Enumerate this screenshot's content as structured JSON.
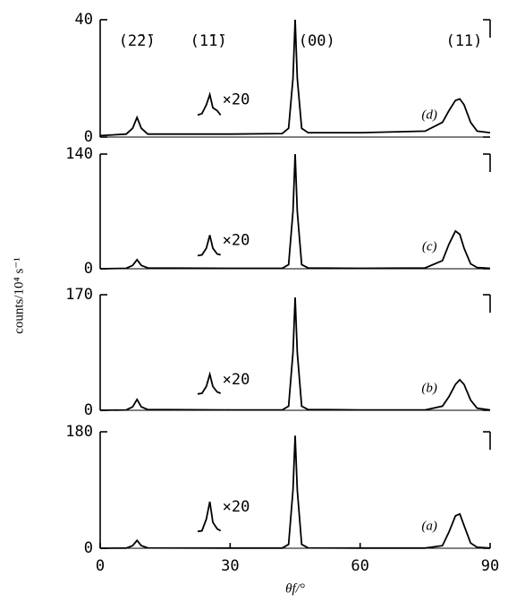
{
  "y_axis_label": "counts/10⁴ s⁻¹",
  "chart_data": [
    {
      "type": "line",
      "panel_label": "(d)",
      "inset_label": "×20",
      "peak_labels": [
        "(2̄2̄)",
        "(1̄1̄)",
        "(00)",
        "(11)"
      ],
      "xlim": [
        0,
        90
      ],
      "ylim": [
        0,
        40
      ],
      "yticks": [
        0,
        40
      ],
      "series": [
        {
          "color": "#000000",
          "x": [
            0,
            6,
            7.5,
            8.5,
            9.5,
            11,
            30,
            42,
            43.5,
            44.5,
            45,
            45.5,
            46.5,
            48,
            60,
            75,
            79,
            80.5,
            82,
            83,
            84,
            85.5,
            87,
            90
          ],
          "values": [
            0.5,
            1,
            3,
            6.7,
            3,
            1,
            1,
            1.2,
            3,
            20,
            40,
            20,
            3,
            1.5,
            1.5,
            2,
            5,
            9,
            12.5,
            13,
            11,
            5,
            2,
            1.5
          ]
        },
        {
          "color": "#000000",
          "x": [
            22.5,
            23.5,
            24.5,
            25.3,
            26,
            27,
            27.8
          ],
          "values": [
            7.5,
            8,
            11,
            14.5,
            10,
            9,
            7.5
          ]
        }
      ]
    },
    {
      "type": "line",
      "panel_label": "(c)",
      "inset_label": "×20",
      "xlim": [
        0,
        90
      ],
      "ylim": [
        0,
        140
      ],
      "yticks": [
        0,
        140
      ],
      "series": [
        {
          "color": "#000000",
          "x": [
            0,
            6,
            7.5,
            8.5,
            9.5,
            11,
            30,
            42,
            43.5,
            44.5,
            45,
            45.5,
            46.5,
            48,
            60,
            75,
            79,
            80.5,
            82,
            83,
            84,
            85.5,
            87,
            90
          ],
          "values": [
            0,
            0.5,
            4,
            11,
            4,
            1,
            0.5,
            0.5,
            5,
            70,
            140,
            70,
            5,
            1,
            0.5,
            1,
            10,
            30,
            46,
            42,
            25,
            6,
            1.5,
            0.5
          ]
        },
        {
          "color": "#000000",
          "x": [
            22.5,
            23.5,
            24.5,
            25.3,
            26,
            27,
            27.8
          ],
          "values": [
            16,
            17,
            25,
            41,
            25,
            18,
            17
          ]
        }
      ]
    },
    {
      "type": "line",
      "panel_label": "(b)",
      "inset_label": "×20",
      "xlim": [
        0,
        90
      ],
      "ylim": [
        0,
        170
      ],
      "yticks": [
        0,
        170
      ],
      "series": [
        {
          "color": "#000000",
          "x": [
            0,
            6,
            7.5,
            8.5,
            9.5,
            11,
            30,
            42,
            43.5,
            44.5,
            45,
            45.5,
            46.5,
            48,
            60,
            75,
            79,
            80.5,
            82,
            83,
            84,
            85.5,
            87,
            90
          ],
          "values": [
            0,
            0.5,
            5,
            16,
            5,
            1,
            0.5,
            0.5,
            6,
            85,
            166,
            85,
            6,
            1,
            0.5,
            0.5,
            6,
            20,
            38,
            45,
            38,
            15,
            3,
            0.5
          ]
        },
        {
          "color": "#000000",
          "x": [
            22.5,
            23.5,
            24.5,
            25.3,
            26,
            27,
            27.8
          ],
          "values": [
            24,
            25,
            35,
            53,
            35,
            27,
            25
          ]
        }
      ]
    },
    {
      "type": "line",
      "panel_label": "(a)",
      "inset_label": "×20",
      "xlim": [
        0,
        90
      ],
      "ylim": [
        0,
        180
      ],
      "yticks": [
        0,
        180
      ],
      "xticks": [
        0,
        30,
        60,
        90
      ],
      "xlabel": "θf/°",
      "series": [
        {
          "color": "#000000",
          "x": [
            0,
            6,
            7.5,
            8.5,
            9.5,
            11,
            30,
            42,
            43.5,
            44.5,
            45,
            45.5,
            46.5,
            48,
            60,
            75,
            79,
            80.5,
            82,
            83,
            84,
            85.5,
            87,
            90
          ],
          "values": [
            0,
            0.3,
            4,
            12,
            4,
            0.5,
            0.3,
            0.3,
            6,
            90,
            174,
            90,
            6,
            0.5,
            0.3,
            0.3,
            4,
            25,
            50,
            53,
            35,
            8,
            1.5,
            0.3
          ]
        },
        {
          "color": "#000000",
          "x": [
            22.5,
            23.5,
            24.5,
            25.3,
            26,
            27,
            27.8
          ],
          "values": [
            26,
            27,
            45,
            72,
            40,
            30,
            27
          ]
        }
      ]
    }
  ]
}
